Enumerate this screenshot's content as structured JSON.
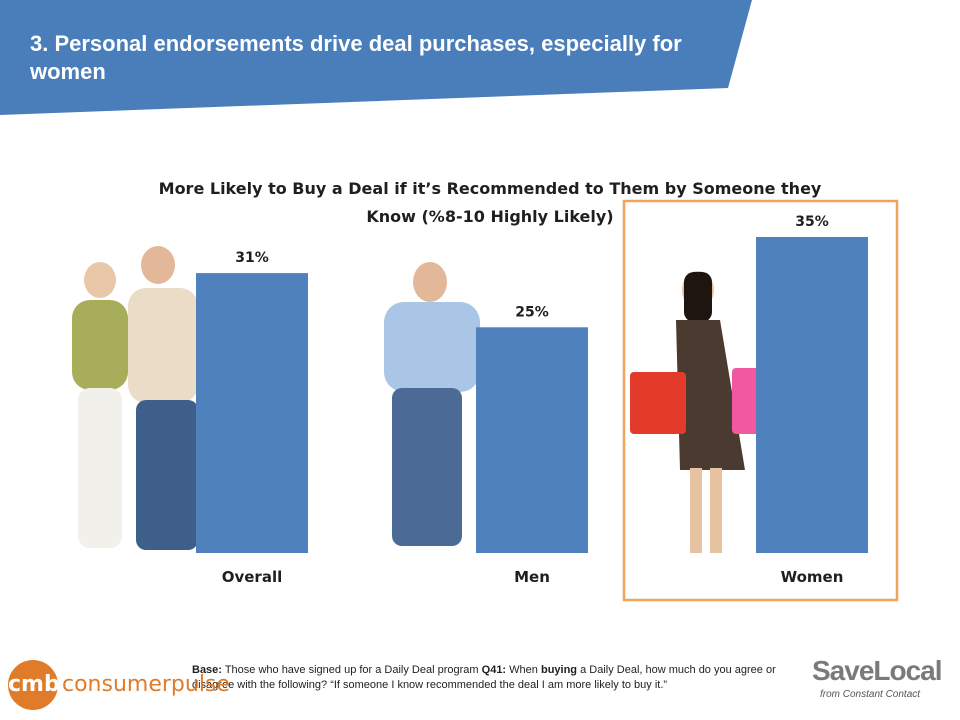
{
  "page": {
    "title": "3. Personal endorsements drive deal purchases, especially for women"
  },
  "colors": {
    "banner": "#4a7ebb",
    "bar": "#4f81bd",
    "highlight_border": "#f0a35a"
  },
  "chart_data": {
    "type": "bar",
    "title": "More Likely to Buy a Deal if it’s Recommended to Them by Someone they Know (%8-10 Highly Likely)",
    "categories": [
      "Overall",
      "Men",
      "Women"
    ],
    "values": [
      31,
      25,
      35
    ],
    "value_labels": [
      "31%",
      "25%",
      "35%"
    ],
    "ylim": [
      0,
      35
    ],
    "grid": false,
    "highlighted_category": "Women"
  },
  "footer": {
    "base_label": "Base:",
    "base_text": " Those who have signed up for a Daily Deal program ",
    "q_label": "Q41:",
    "q_text_1": " When ",
    "q_bold": "buying",
    "q_text_2": " a Daily Deal, how much do you agree or disagree with the following? “If someone I know recommended the deal I am more likely to buy it.”"
  },
  "logos": {
    "left_mark": "cmb",
    "left_text": "consumerpulse",
    "right_text": "SaveLocal",
    "right_sub": "from Constant Contact"
  }
}
